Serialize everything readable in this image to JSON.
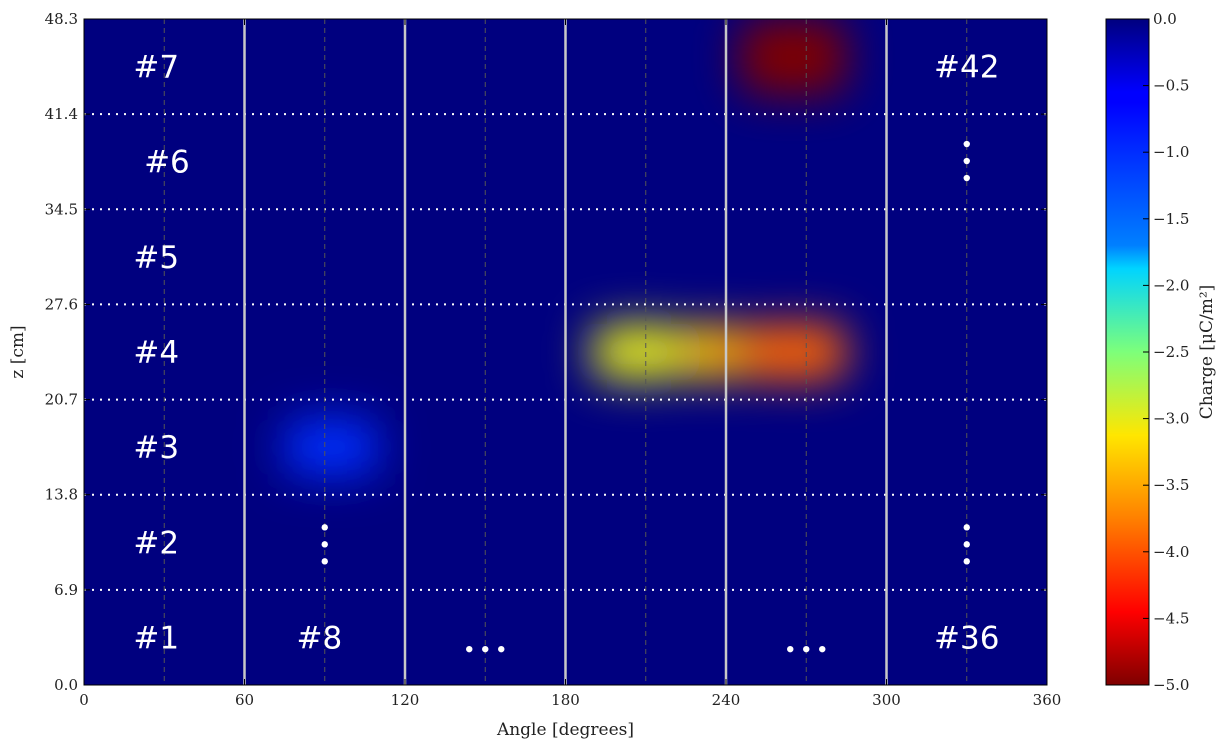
{
  "chart_data": {
    "type": "heatmap",
    "title": "",
    "xlabel": "Angle [degrees]",
    "ylabel": "z [cm]",
    "xlim": [
      0,
      360
    ],
    "ylim": [
      0,
      48.3
    ],
    "x_ticks": [
      0,
      60,
      120,
      180,
      240,
      300,
      360
    ],
    "x_tick_labels": [
      "0",
      "60",
      "120",
      "180",
      "240",
      "300",
      "360"
    ],
    "y_ticks": [
      0,
      6.9,
      13.8,
      20.7,
      27.6,
      34.5,
      41.4,
      48.3
    ],
    "y_tick_labels": [
      "0.0",
      "6.9",
      "13.8",
      "20.7",
      "27.6",
      "34.5",
      "41.4",
      "48.3"
    ],
    "colorbar": {
      "label": "Charge [μC/m²]",
      "range": [
        -5.0,
        0.0
      ],
      "colormap": "jet",
      "ticks": [
        0.0,
        -0.5,
        -1.0,
        -1.5,
        -2.0,
        -2.5,
        -3.0,
        -3.5,
        -4.0,
        -4.5,
        -5.0
      ],
      "tick_labels": [
        "0.0",
        "−0.5",
        "−1.0",
        "−1.5",
        "−2.0",
        "−2.5",
        "−3.0",
        "−3.5",
        "−4.0",
        "−4.5",
        "−5.0"
      ]
    },
    "regions": [
      {
        "x": [
          75,
          110
        ],
        "z": [
          15.2,
          19.3
        ],
        "charge": -1.0
      },
      {
        "x": [
          190,
          225
        ],
        "z": [
          22.1,
          26.2
        ],
        "charge": -3.0
      },
      {
        "x": [
          225,
          245
        ],
        "z": [
          22.1,
          26.2
        ],
        "charge": -3.4
      },
      {
        "x": [
          245,
          285
        ],
        "z": [
          22.1,
          26.2
        ],
        "charge": -3.9
      },
      {
        "x": [
          245,
          285
        ],
        "z": [
          42.8,
          48.3
        ],
        "charge": -5.0
      }
    ],
    "sector_boundaries": [
      60,
      120,
      180,
      240,
      300
    ],
    "sector_centers": [
      30,
      90,
      150,
      210,
      270,
      330
    ],
    "row_boundaries": [
      6.9,
      13.8,
      20.7,
      27.6,
      34.5,
      41.4
    ],
    "grid": "dotted",
    "cell_labels": [
      {
        "text": "#1",
        "x": 27,
        "z": 3.45
      },
      {
        "text": "#2",
        "x": 27,
        "z": 10.35
      },
      {
        "text": "#3",
        "x": 27,
        "z": 17.25
      },
      {
        "text": "#4",
        "x": 27,
        "z": 24.15
      },
      {
        "text": "#5",
        "x": 27,
        "z": 31.05
      },
      {
        "text": "#6",
        "x": 31,
        "z": 37.95
      },
      {
        "text": "#7",
        "x": 27,
        "z": 44.85
      },
      {
        "text": "#8",
        "x": 88,
        "z": 3.45
      },
      {
        "text": "#36",
        "x": 330,
        "z": 3.45
      },
      {
        "text": "#42",
        "x": 330,
        "z": 44.85
      }
    ],
    "ellipses": [
      {
        "orientation": "vertical",
        "x": 90,
        "z": 10.2
      },
      {
        "orientation": "vertical",
        "x": 330,
        "z": 10.2
      },
      {
        "orientation": "vertical",
        "x": 330,
        "z": 38.0
      },
      {
        "orientation": "horizontal",
        "x": 150,
        "z": 2.6
      },
      {
        "orientation": "horizontal",
        "x": 270,
        "z": 2.6
      }
    ]
  }
}
